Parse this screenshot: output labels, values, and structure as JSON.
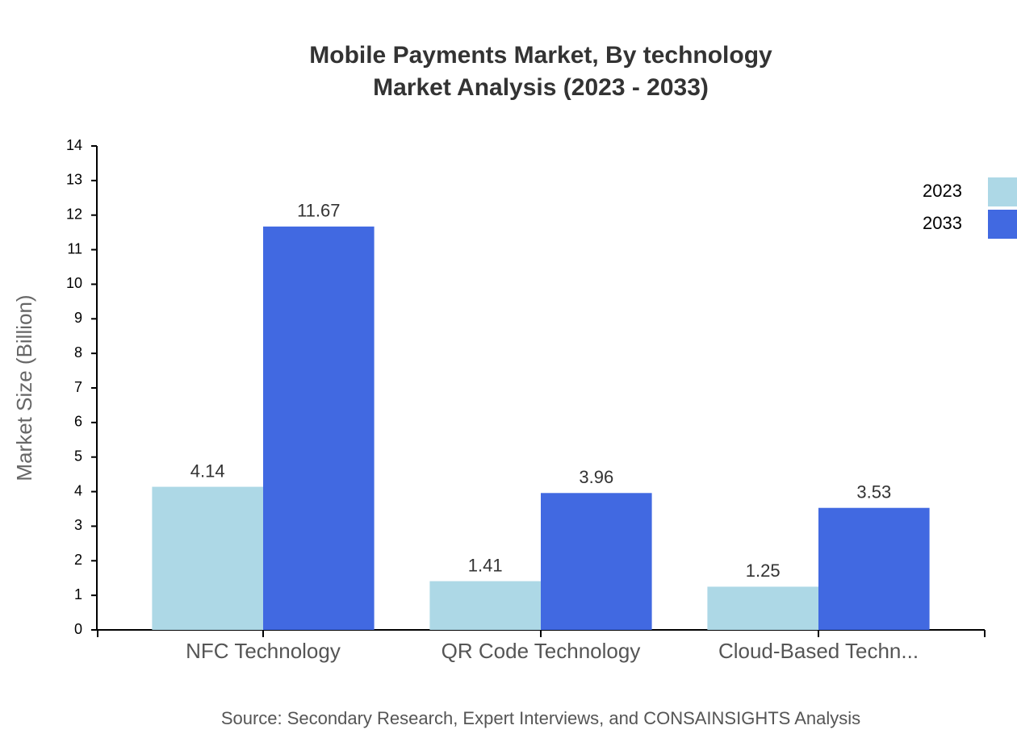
{
  "chart_data": {
    "type": "bar",
    "title": "Mobile Payments Market, By technology",
    "subtitle": "Market Analysis (2023 - 2033)",
    "y_label": "Market Size (Billion)",
    "source": "Source: Secondary Research, Expert Interviews, and CONSAINSIGHTS Analysis",
    "categories": [
      "NFC Technology",
      "QR Code Technology",
      "Cloud-Based Techn..."
    ],
    "series": [
      {
        "name": "2023",
        "color": "#add8e6",
        "values": [
          4.14,
          1.41,
          1.25
        ]
      },
      {
        "name": "2033",
        "color": "#4169e1",
        "values": [
          11.67,
          3.96,
          3.53
        ]
      }
    ],
    "ylim": [
      0,
      14
    ],
    "yticks": [
      0,
      1,
      2,
      3,
      4,
      5,
      6,
      7,
      8,
      9,
      10,
      11,
      12,
      13,
      14
    ],
    "legend": "top-right"
  }
}
